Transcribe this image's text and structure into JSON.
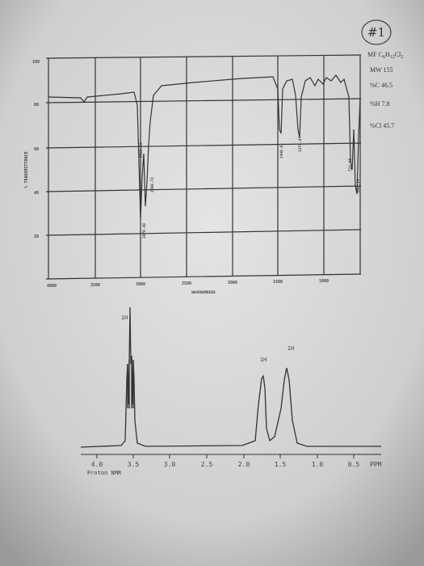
{
  "header": {
    "label": "#1"
  },
  "info": {
    "formula": [
      "MF C",
      "6",
      "H",
      "12",
      "Cl",
      "2"
    ],
    "lines": [
      "MW 155",
      "%C 46.5",
      "%H 7.8",
      "%Cl 45.7"
    ]
  },
  "ir": {
    "y_axis_label": "% TRANSMITTANCE",
    "y_ticks": [
      "100",
      "80",
      "60",
      "40",
      "20"
    ],
    "x_ticks": [
      "4000",
      "3500",
      "3000",
      "2500",
      "2000",
      "1500",
      "1000"
    ],
    "x_axis_label": "WAVENUMBERS",
    "peaks": [
      "2962.88",
      "2870.49",
      "2868.72",
      "1448.61",
      "1379.47",
      "721.66",
      "692.14"
    ]
  },
  "nmr": {
    "peak_labels": [
      "1H",
      "1H",
      "1H"
    ],
    "x_ticks": [
      "4.0",
      "3.5",
      "3.0",
      "2.5",
      "2.0",
      "1.5",
      "1.0",
      "0.5"
    ],
    "unit": "PPM",
    "caption": "Proton NMR"
  }
}
